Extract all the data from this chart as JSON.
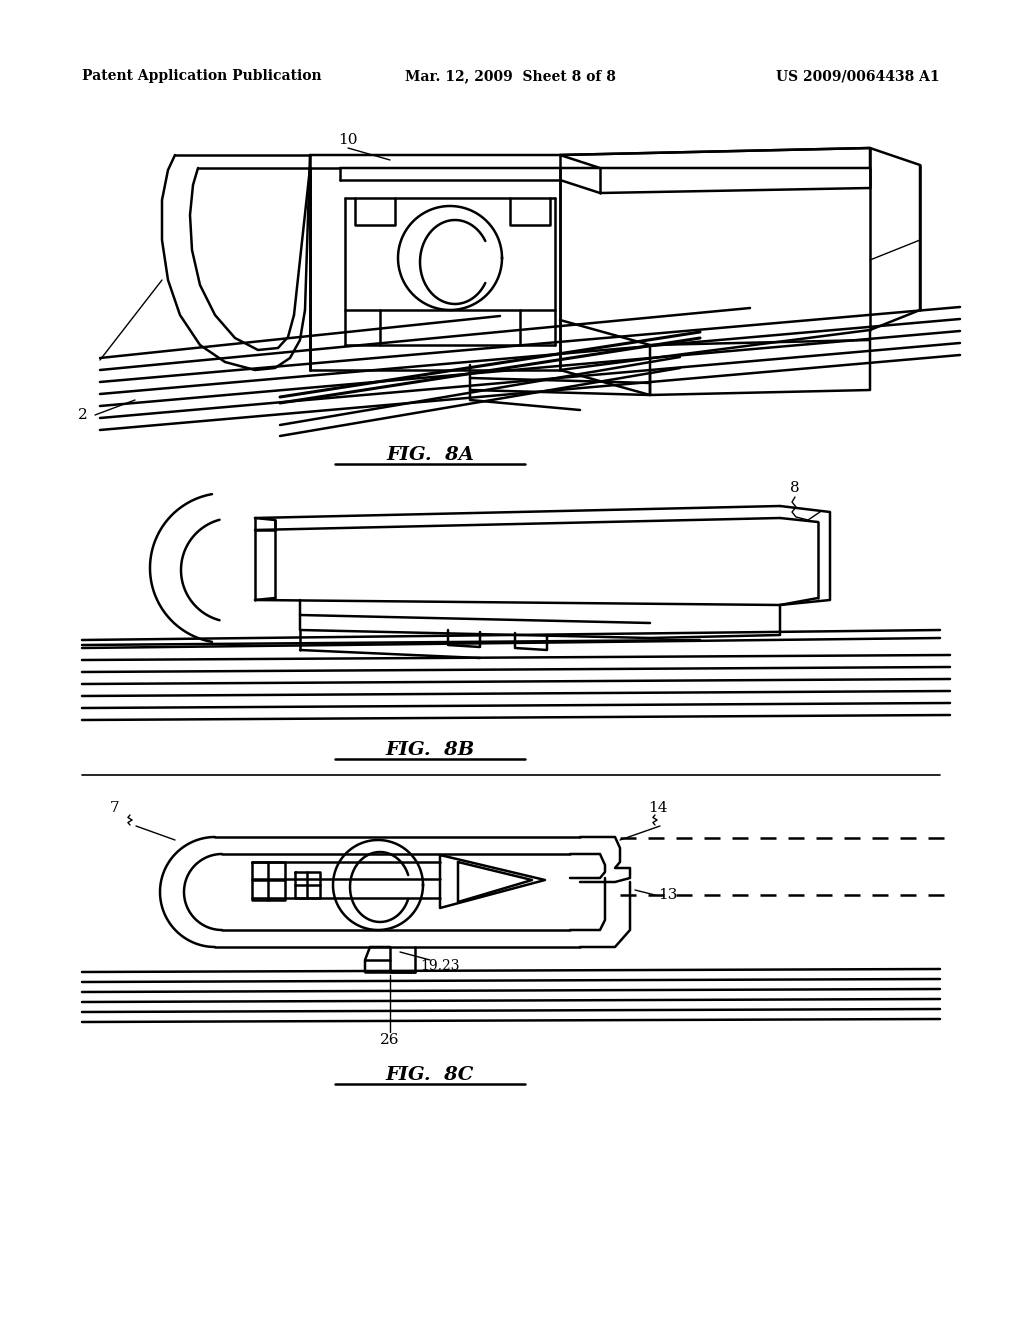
{
  "background_color": "#ffffff",
  "page_width": 10.24,
  "page_height": 13.2,
  "header_text_left": "Patent Application Publication",
  "header_text_mid": "Mar. 12, 2009  Sheet 8 of 8",
  "header_text_right": "US 2009/0064438 A1",
  "fig8a_label": "FIG.  8A",
  "fig8b_label": "FIG.  8B",
  "fig8c_label": "FIG.  8C",
  "label_10": "10",
  "label_2": "2",
  "label_8": "8",
  "label_7": "7",
  "label_13": "13",
  "label_14": "14",
  "label_19_23": "19,23",
  "label_26": "26",
  "lw": 1.8,
  "lw_thin": 1.0,
  "font_header": 10,
  "font_label": 11,
  "font_fig": 14
}
